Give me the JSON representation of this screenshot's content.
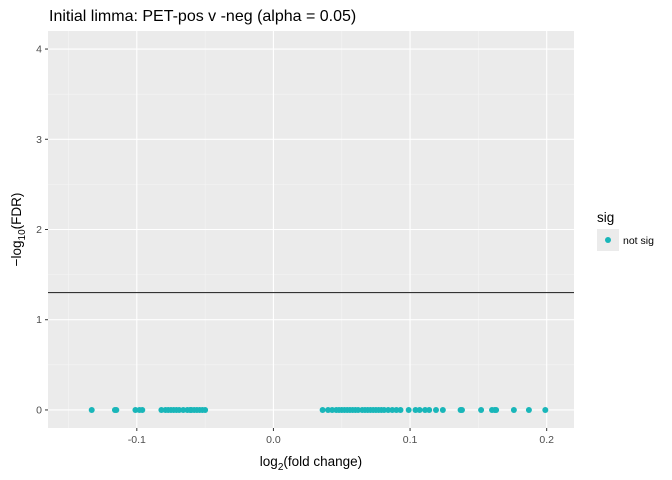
{
  "chart_data": {
    "type": "scatter",
    "title": "Initial limma: PET-pos v -neg (alpha = 0.05)",
    "xlabel_base": "log",
    "xlabel_sub": "2",
    "xlabel_rest": "(fold change)",
    "ylabel_base": "−log",
    "ylabel_sub": "10",
    "ylabel_rest": "(FDR)",
    "xlim": [
      -0.165,
      0.22
    ],
    "ylim": [
      -0.2,
      4.2
    ],
    "x_ticks": [
      -0.1,
      0.0,
      0.1,
      0.2
    ],
    "x_tick_labels": [
      "-0.1",
      "0.0",
      "0.1",
      "0.2"
    ],
    "y_ticks": [
      0,
      1,
      2,
      3,
      4
    ],
    "y_tick_labels": [
      "0",
      "1",
      "2",
      "3",
      "4"
    ],
    "threshold_y": 1.30103,
    "grid": true,
    "legend": {
      "title": "sig",
      "position": "right",
      "entries": [
        {
          "label": "not sig",
          "color": "#19b6b9"
        }
      ]
    },
    "series": [
      {
        "name": "not sig",
        "color": "#19b6b9",
        "points": [
          {
            "x": -0.133,
            "y": 0
          },
          {
            "x": -0.116,
            "y": 0
          },
          {
            "x": -0.115,
            "y": 0
          },
          {
            "x": -0.101,
            "y": 0
          },
          {
            "x": -0.098,
            "y": 0
          },
          {
            "x": -0.096,
            "y": 0
          },
          {
            "x": -0.082,
            "y": 0
          },
          {
            "x": -0.079,
            "y": 0
          },
          {
            "x": -0.077,
            "y": 0
          },
          {
            "x": -0.075,
            "y": 0
          },
          {
            "x": -0.073,
            "y": 0
          },
          {
            "x": -0.071,
            "y": 0
          },
          {
            "x": -0.069,
            "y": 0
          },
          {
            "x": -0.066,
            "y": 0
          },
          {
            "x": -0.063,
            "y": 0
          },
          {
            "x": -0.061,
            "y": 0
          },
          {
            "x": -0.06,
            "y": 0
          },
          {
            "x": -0.058,
            "y": 0
          },
          {
            "x": -0.056,
            "y": 0
          },
          {
            "x": -0.054,
            "y": 0
          },
          {
            "x": -0.052,
            "y": 0
          },
          {
            "x": -0.05,
            "y": 0
          },
          {
            "x": 0.036,
            "y": 0
          },
          {
            "x": 0.04,
            "y": 0
          },
          {
            "x": 0.043,
            "y": 0
          },
          {
            "x": 0.046,
            "y": 0
          },
          {
            "x": 0.048,
            "y": 0
          },
          {
            "x": 0.05,
            "y": 0
          },
          {
            "x": 0.052,
            "y": 0
          },
          {
            "x": 0.054,
            "y": 0
          },
          {
            "x": 0.056,
            "y": 0
          },
          {
            "x": 0.058,
            "y": 0
          },
          {
            "x": 0.06,
            "y": 0
          },
          {
            "x": 0.062,
            "y": 0
          },
          {
            "x": 0.065,
            "y": 0
          },
          {
            "x": 0.067,
            "y": 0
          },
          {
            "x": 0.069,
            "y": 0
          },
          {
            "x": 0.071,
            "y": 0
          },
          {
            "x": 0.073,
            "y": 0
          },
          {
            "x": 0.075,
            "y": 0
          },
          {
            "x": 0.077,
            "y": 0
          },
          {
            "x": 0.079,
            "y": 0
          },
          {
            "x": 0.081,
            "y": 0
          },
          {
            "x": 0.084,
            "y": 0
          },
          {
            "x": 0.087,
            "y": 0
          },
          {
            "x": 0.09,
            "y": 0
          },
          {
            "x": 0.093,
            "y": 0
          },
          {
            "x": 0.099,
            "y": 0
          },
          {
            "x": 0.104,
            "y": 0
          },
          {
            "x": 0.107,
            "y": 0
          },
          {
            "x": 0.111,
            "y": 0
          },
          {
            "x": 0.114,
            "y": 0
          },
          {
            "x": 0.119,
            "y": 0
          },
          {
            "x": 0.124,
            "y": 0
          },
          {
            "x": 0.137,
            "y": 0
          },
          {
            "x": 0.138,
            "y": 0
          },
          {
            "x": 0.152,
            "y": 0
          },
          {
            "x": 0.16,
            "y": 0
          },
          {
            "x": 0.162,
            "y": 0
          },
          {
            "x": 0.163,
            "y": 0
          },
          {
            "x": 0.176,
            "y": 0
          },
          {
            "x": 0.187,
            "y": 0
          },
          {
            "x": 0.199,
            "y": 0
          }
        ]
      }
    ]
  }
}
